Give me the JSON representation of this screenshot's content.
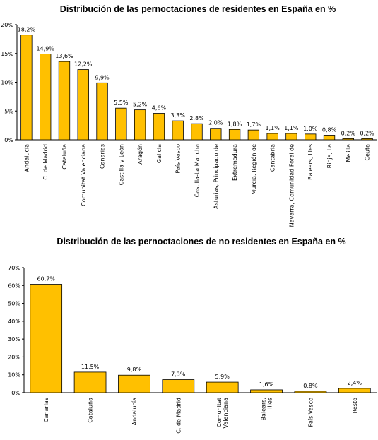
{
  "chart_data": [
    {
      "type": "bar",
      "title": "Distribución de las pernoctaciones de residentes en España en %",
      "xlabel": "",
      "ylabel": "",
      "ylim": [
        0,
        20
      ],
      "yticks": [
        "0%",
        "5%",
        "10%",
        "15%",
        "20%"
      ],
      "grid": false,
      "categories": [
        "Andalucía",
        "C. de Madrid",
        "Cataluña",
        "Comunitat Valenciana",
        "Canarias",
        "Castilla y León",
        "Aragón",
        "Galicia",
        "País Vasco",
        "Castilla-La Mancha",
        "Asturias, Principado de",
        "Extremadura",
        "Murcia, Región de",
        "Cantabria",
        "Navarra, Comunidad Foral de",
        "Balears, Illes",
        "Rioja, La",
        "Melilla",
        "Ceuta"
      ],
      "values": [
        18.2,
        14.9,
        13.6,
        12.2,
        9.9,
        5.5,
        5.2,
        4.6,
        3.3,
        2.8,
        2.0,
        1.8,
        1.7,
        1.1,
        1.1,
        1.0,
        0.8,
        0.2,
        0.2
      ],
      "labels": [
        "18,2%",
        "14,9%",
        "13,6%",
        "12,2%",
        "9,9%",
        "5,5%",
        "5,2%",
        "4,6%",
        "3,3%",
        "2,8%",
        "2,0%",
        "1,8%",
        "1,7%",
        "1,1%",
        "1,1%",
        "1,0%",
        "0,8%",
        "0,2%",
        "0,2%"
      ]
    },
    {
      "type": "bar",
      "title": "Distribución de las pernoctaciones de no residentes en España en %",
      "xlabel": "",
      "ylabel": "",
      "ylim": [
        0,
        70
      ],
      "yticks": [
        "0%",
        "10%",
        "20%",
        "30%",
        "40%",
        "50%",
        "60%",
        "70%"
      ],
      "grid": false,
      "categories": [
        "Canarias",
        "Cataluña",
        "Andalucía",
        "C. de Madrid",
        "Comunitat Valenciana",
        "Balears, Illes",
        "País Vasco",
        "Resto"
      ],
      "values": [
        60.7,
        11.5,
        9.8,
        7.3,
        5.9,
        1.6,
        0.8,
        2.4
      ],
      "labels": [
        "60,7%",
        "11,5%",
        "9,8%",
        "7,3%",
        "5,9%",
        "1,6%",
        "0,8%",
        "2,4%"
      ]
    }
  ],
  "colors": {
    "bar": "#ffc000",
    "bar_border": "#000000"
  }
}
